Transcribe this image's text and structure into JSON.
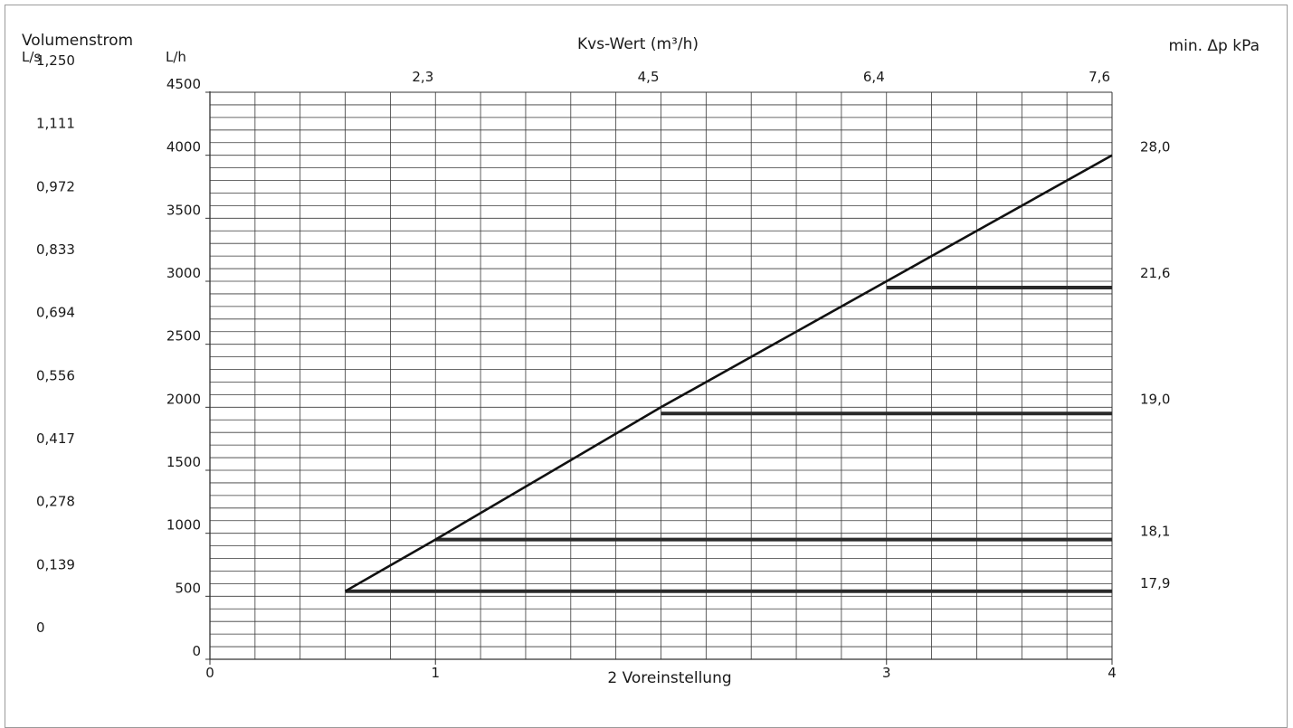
{
  "chart_data": {
    "type": "line",
    "title": "Kvs-Wert (m³/h)",
    "left_axis_label": "Volumenstrom",
    "ls_unit": "L/s",
    "lh_unit": "L/h",
    "right_axis_label": "min. Δp kPa",
    "xlabel": "2 Voreinstellung",
    "x_ticks": [
      "0",
      "1",
      "3",
      "4"
    ],
    "xlim": [
      0,
      4
    ],
    "ylim": [
      0,
      4500
    ],
    "lh_ticks": [
      "0",
      "500",
      "1000",
      "1500",
      "2000",
      "2500",
      "3000",
      "3500",
      "4000",
      "4500"
    ],
    "ls_ticks": [
      "0",
      "0,139",
      "0,278",
      "0,417",
      "0,556",
      "0,694",
      "0,833",
      "0,972",
      "1,111",
      "1,250"
    ],
    "kvs_ticks": [
      {
        "x": 1,
        "label": "2,3"
      },
      {
        "x": 2,
        "label": "4,5"
      },
      {
        "x": 3,
        "label": "6,4"
      },
      {
        "x": 4,
        "label": "7,6"
      }
    ],
    "dp_labels": [
      {
        "y": 4000,
        "label": "28,0"
      },
      {
        "y": 3000,
        "label": "21,6"
      },
      {
        "y": 2000,
        "label": "19,0"
      },
      {
        "y": 950,
        "label": "18,1"
      },
      {
        "y": 540,
        "label": "17,9"
      }
    ],
    "series": [
      {
        "points": [
          [
            0.6,
            540
          ],
          [
            1,
            950
          ],
          [
            2,
            2000
          ],
          [
            3,
            3000
          ],
          [
            4,
            4000
          ]
        ]
      }
    ],
    "limit_lines": [
      {
        "x_start": 0.6,
        "x_end": 4,
        "y": 540
      },
      {
        "x_start": 1,
        "x_end": 4,
        "y": 950
      },
      {
        "x_start": 2,
        "x_end": 4,
        "y": 1950
      },
      {
        "x_start": 3,
        "x_end": 4,
        "y": 2950
      }
    ],
    "grid": true,
    "colors": {
      "line": "#111111",
      "grid": "#3a3a3a",
      "limit": "#2a2a2a"
    }
  }
}
